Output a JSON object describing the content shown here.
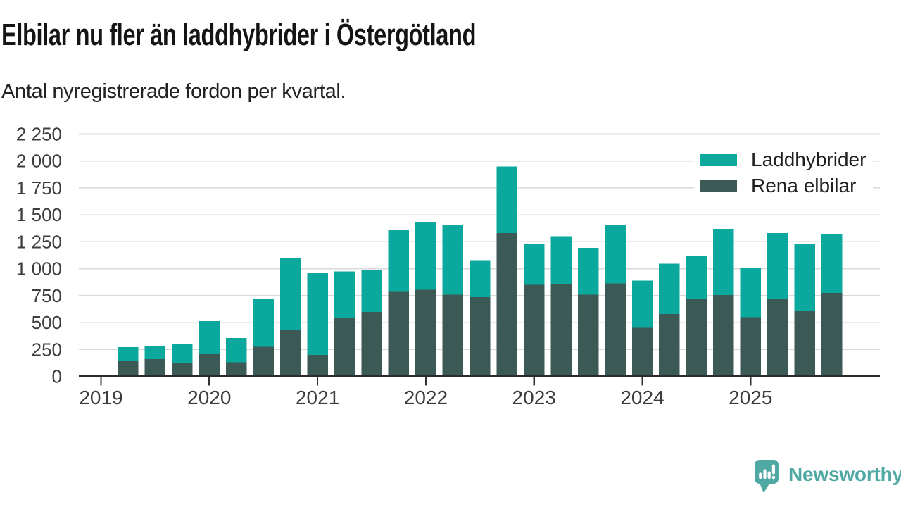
{
  "header": {
    "title": "Elbilar nu fler än laddhybrider i Östergötland",
    "subtitle": "Antal nyregistrerade fordon per kvartal."
  },
  "legend": {
    "items": [
      {
        "label": "Laddhybrider",
        "color": "#0ba89e"
      },
      {
        "label": "Rena elbilar",
        "color": "#3b5a55"
      }
    ]
  },
  "footer": {
    "brand": "Newsworthy",
    "brand_color": "#4fa8a2",
    "logo_icon": "newsworthy-speech-bubble-bar-chart-icon"
  },
  "chart_data": {
    "type": "bar",
    "stacked": true,
    "title": "Elbilar nu fler än laddhybrider i Östergötland",
    "subtitle": "Antal nyregistrerade fordon per kvartal.",
    "xlabel": "",
    "ylabel": "",
    "ylim": [
      0,
      2250
    ],
    "grid": "horizontal",
    "legend_position": "top-right",
    "categories": [
      "2019 Q2",
      "2019 Q3",
      "2019 Q4",
      "2020 Q1",
      "2020 Q2",
      "2020 Q3",
      "2020 Q4",
      "2021 Q1",
      "2021 Q2",
      "2021 Q3",
      "2021 Q4",
      "2022 Q1",
      "2022 Q2",
      "2022 Q3",
      "2022 Q4",
      "2023 Q1",
      "2023 Q2",
      "2023 Q3",
      "2023 Q4",
      "2024 Q1",
      "2024 Q2",
      "2024 Q3",
      "2024 Q4",
      "2025 Q1",
      "2025 Q2",
      "2025 Q3",
      "2025 Q4"
    ],
    "first_bar_quarter_index": 1,
    "series": [
      {
        "name": "Laddhybrider",
        "color": "#0ba89e",
        "stack": "top",
        "values": [
          125,
          120,
          180,
          310,
          225,
          440,
          665,
          760,
          435,
          385,
          570,
          630,
          645,
          345,
          620,
          375,
          445,
          435,
          545,
          440,
          465,
          400,
          615,
          460,
          610,
          615,
          545
        ]
      },
      {
        "name": "Rena elbilar",
        "color": "#3b5a55",
        "stack": "bottom",
        "values": [
          145,
          160,
          125,
          205,
          130,
          275,
          435,
          200,
          540,
          600,
          790,
          805,
          760,
          735,
          1330,
          850,
          855,
          760,
          865,
          450,
          580,
          720,
          755,
          550,
          720,
          610,
          775
        ]
      }
    ],
    "y_ticks": [
      0,
      250,
      500,
      750,
      1000,
      1250,
      1500,
      1750,
      2000,
      2250
    ],
    "y_tick_labels": [
      "0",
      "250",
      "500",
      "750",
      "1 000",
      "1 250",
      "1 500",
      "1 750",
      "2 000",
      "2 250"
    ],
    "x_tick_labels": [
      "2019",
      "2020",
      "2021",
      "2022",
      "2023",
      "2024",
      "2025"
    ]
  }
}
